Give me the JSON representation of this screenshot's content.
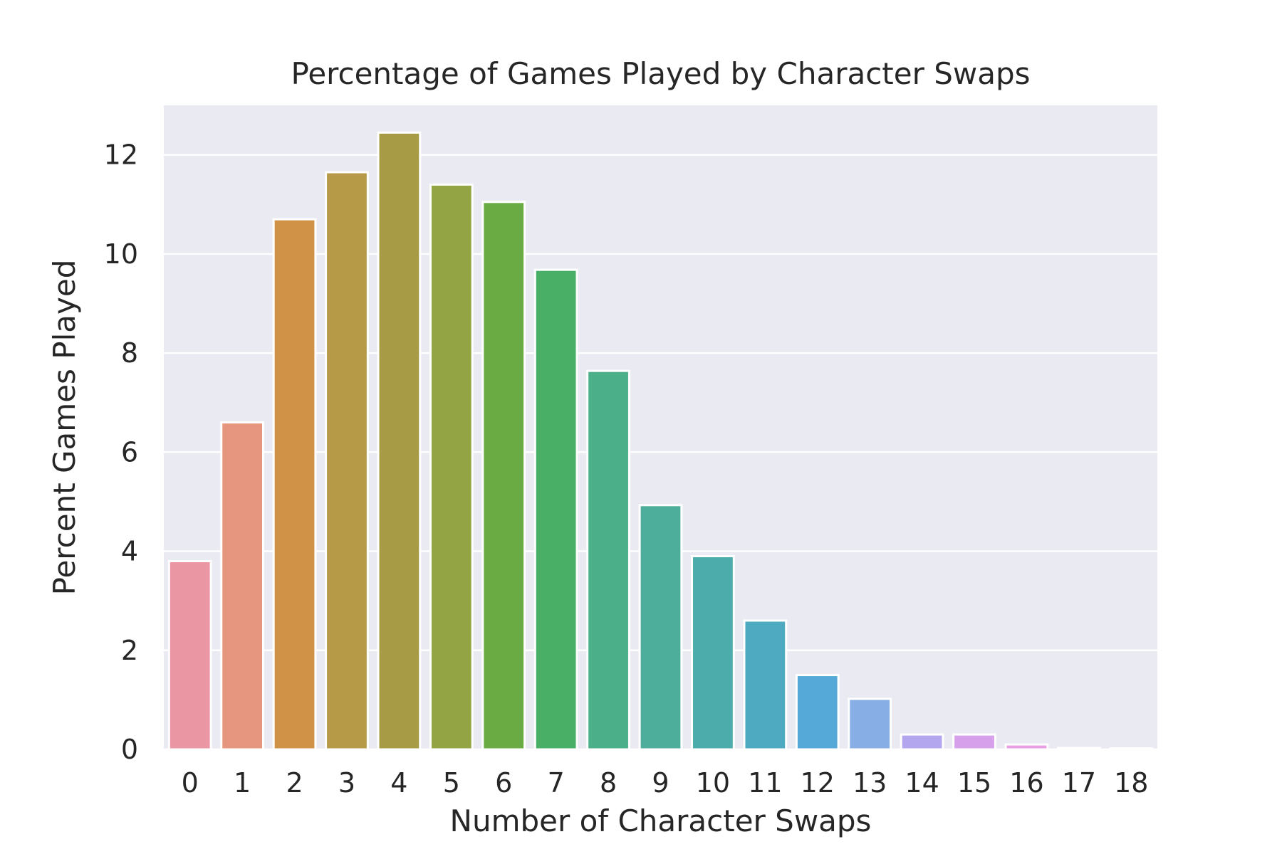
{
  "chart_data": {
    "type": "bar",
    "title": "Percentage of Games Played by Character Swaps",
    "xlabel": "Number of Character Swaps",
    "ylabel": "Percent Games Played",
    "categories": [
      "0",
      "1",
      "2",
      "3",
      "4",
      "5",
      "6",
      "7",
      "8",
      "9",
      "10",
      "11",
      "12",
      "13",
      "14",
      "15",
      "16",
      "17",
      "18"
    ],
    "values": [
      3.8,
      6.6,
      10.7,
      11.65,
      12.45,
      11.4,
      11.05,
      9.68,
      7.64,
      4.93,
      3.9,
      2.6,
      1.5,
      1.02,
      0.3,
      0.3,
      0.1,
      0.03,
      0.02
    ],
    "colors": [
      "#ea96a3",
      "#e6967e",
      "#d09247",
      "#b69a47",
      "#a79c45",
      "#93a444",
      "#6aab44",
      "#49af67",
      "#4bb089",
      "#4dae9c",
      "#4bacab",
      "#4daac0",
      "#54a9d8",
      "#88aee6",
      "#b3a5ee",
      "#d6a1ea",
      "#e99de2",
      "#eb9ac8",
      "#ea96b6"
    ],
    "ylim": [
      0,
      13
    ],
    "yticks": [
      0,
      2,
      4,
      6,
      8,
      10,
      12
    ],
    "grid": true,
    "background": "#eaeaf2",
    "grid_color": "#ffffff"
  }
}
